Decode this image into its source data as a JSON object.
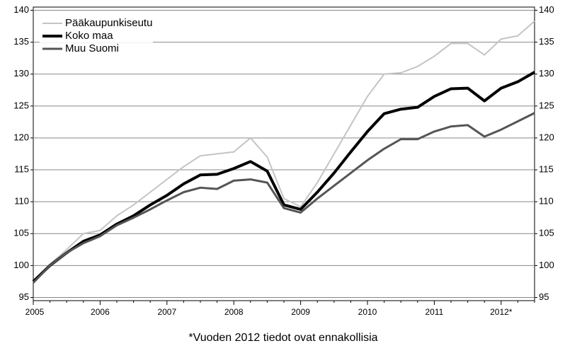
{
  "chart_data": {
    "type": "line",
    "categories": [
      "2005",
      null,
      null,
      null,
      "2006",
      null,
      null,
      null,
      "2007",
      null,
      null,
      null,
      "2008",
      null,
      null,
      null,
      "2009",
      null,
      null,
      null,
      "2010",
      null,
      null,
      null,
      "2011",
      null,
      null,
      null,
      "2012*",
      null,
      null
    ],
    "series": [
      {
        "name": "Pääkaupunkiseutu",
        "color": "#c4c4c4",
        "width": 2,
        "values": [
          97.5,
          100.2,
          102.5,
          105,
          105.5,
          107.8,
          109.5,
          111.5,
          113.5,
          115.5,
          117.2,
          117.5,
          117.8,
          120,
          117,
          110.5,
          109.2,
          113,
          117.5,
          122,
          126.5,
          130,
          130.2,
          131.2,
          132.8,
          134.8,
          134.8,
          133,
          135.5,
          136,
          138.3
        ]
      },
      {
        "name": "Koko maa",
        "color": "#000000",
        "width": 4,
        "values": [
          97.5,
          100,
          102,
          103.8,
          104.8,
          106.5,
          107.8,
          109.5,
          111,
          112.8,
          114.2,
          114.3,
          115.2,
          116.3,
          114.8,
          109.5,
          108.8,
          111.5,
          114.5,
          117.8,
          121,
          123.8,
          124.5,
          124.8,
          126.5,
          127.7,
          127.8,
          125.8,
          127.8,
          128.8,
          130.3
        ]
      },
      {
        "name": "Muu Suomi",
        "color": "#555555",
        "width": 3,
        "values": [
          97.3,
          100,
          102,
          103.5,
          104.6,
          106.3,
          107.5,
          108.8,
          110.2,
          111.5,
          112.2,
          112,
          113.3,
          113.5,
          113,
          109,
          108.3,
          110.5,
          112.5,
          114.5,
          116.5,
          118.3,
          119.8,
          119.8,
          121,
          121.8,
          122,
          120.2,
          121.3,
          122.6,
          123.9
        ]
      }
    ],
    "ylim": [
      94.5,
      140.5
    ],
    "yticks": [
      95,
      100,
      105,
      110,
      115,
      120,
      125,
      130,
      135,
      140
    ],
    "y2lim": [
      94.5,
      140.5
    ],
    "y2ticks": [
      95,
      100,
      105,
      110,
      115,
      120,
      125,
      130,
      135,
      140
    ],
    "grid": true,
    "note": "*Vuoden 2012 tiedot ovat ennakollisia"
  }
}
